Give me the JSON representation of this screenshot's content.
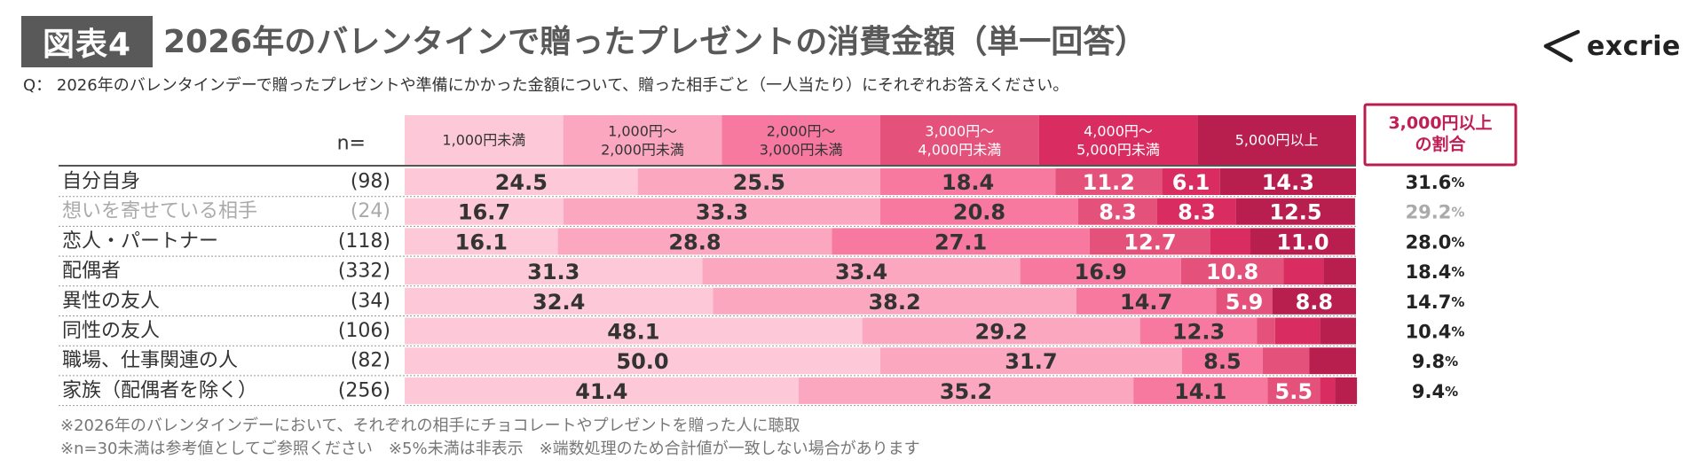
{
  "figure_label": "図表4",
  "title": "2026年のバレンタインで贈ったプレゼントの消費金額（単一回答）",
  "logo_text": "excrie",
  "question": "Q： 2026年のバレンタインデーで贈ったプレゼントや準備にかかった金額について、贈った相手ごと（一人当たり）にそれぞれお答えください。",
  "footnote1": "※2026年のバレンタインデーにおいて、それぞれの相手にチョコレートやプレゼントを贈った人に聴取",
  "footnote2": "※n=30未満は参考値としてご参照ください　※5%未満は非表示　※端数処理のため合計値が一致しない場合があります",
  "colors": {
    "segments": [
      "#fdc9d9",
      "#fca7c0",
      "#f8799f",
      "#e4517b",
      "#d92d62",
      "#b81f4e"
    ],
    "share_border": "#b81f4e",
    "share_text": "#c01f55",
    "text_light_bg": "#333333",
    "text_dark_bg": "#ffffff",
    "muted": "#aaaaaa"
  },
  "chart_data": {
    "type": "bar",
    "orientation": "horizontal-stacked-100",
    "n_header": "n=",
    "share_header": [
      "3,000円以上",
      "の割合"
    ],
    "legend": [
      [
        "1,000円未満"
      ],
      [
        "1,000円～",
        "2,000円未満"
      ],
      [
        "2,000円～",
        "3,000円未満"
      ],
      [
        "3,000円～",
        "4,000円未満"
      ],
      [
        "4,000円～",
        "5,000円未満"
      ],
      [
        "5,000円以上"
      ]
    ],
    "rows": [
      {
        "label": "自分自身",
        "n": "(98)",
        "muted": false,
        "values": [
          24.5,
          25.5,
          18.4,
          11.2,
          6.1,
          14.3
        ],
        "share": "31.6"
      },
      {
        "label": "想いを寄せている相手",
        "n": "(24)",
        "muted": true,
        "values": [
          16.7,
          33.3,
          20.8,
          8.3,
          8.3,
          12.5
        ],
        "share": "29.2"
      },
      {
        "label": "恋人・パートナー",
        "n": "(118)",
        "muted": false,
        "values": [
          16.1,
          28.8,
          27.1,
          12.7,
          4.2,
          11.0
        ],
        "share": "28.0"
      },
      {
        "label": "配偶者",
        "n": "(332)",
        "muted": false,
        "values": [
          31.3,
          33.4,
          16.9,
          10.8,
          4.2,
          3.4
        ],
        "share": "18.4"
      },
      {
        "label": "異性の友人",
        "n": "(34)",
        "muted": false,
        "values": [
          32.4,
          38.2,
          14.7,
          5.9,
          0.0,
          8.8
        ],
        "share": "14.7"
      },
      {
        "label": "同性の友人",
        "n": "(106)",
        "muted": false,
        "values": [
          48.1,
          29.2,
          12.3,
          1.9,
          4.7,
          3.8
        ],
        "share": "10.4"
      },
      {
        "label": "職場、仕事関連の人",
        "n": "(82)",
        "muted": false,
        "values": [
          50.0,
          31.7,
          8.5,
          4.9,
          0.0,
          4.9
        ],
        "share": "9.8"
      },
      {
        "label": "家族（配偶者を除く）",
        "n": "(256)",
        "muted": false,
        "values": [
          41.4,
          35.2,
          14.1,
          5.5,
          1.6,
          2.3
        ],
        "share": "9.4"
      }
    ],
    "label_threshold": 5,
    "unit": "%",
    "xlim": [
      0,
      100
    ]
  }
}
